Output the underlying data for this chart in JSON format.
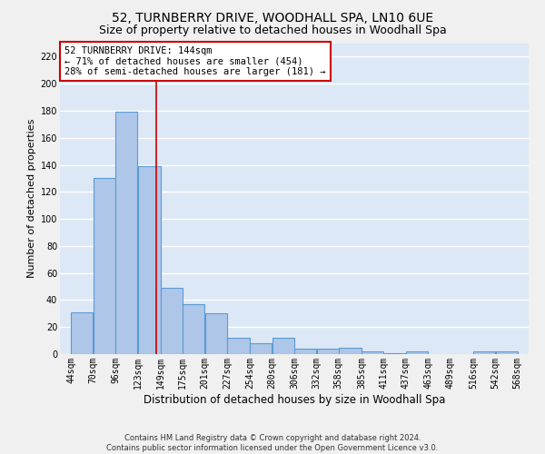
{
  "title": "52, TURNBERRY DRIVE, WOODHALL SPA, LN10 6UE",
  "subtitle": "Size of property relative to detached houses in Woodhall Spa",
  "xlabel": "Distribution of detached houses by size in Woodhall Spa",
  "ylabel": "Number of detached properties",
  "footer_line1": "Contains HM Land Registry data © Crown copyright and database right 2024.",
  "footer_line2": "Contains public sector information licensed under the Open Government Licence v3.0.",
  "bar_left_edges": [
    44,
    70,
    96,
    123,
    149,
    175,
    201,
    227,
    254,
    280,
    306,
    332,
    358,
    385,
    411,
    437,
    463,
    489,
    516,
    542
  ],
  "bar_widths": [
    26,
    26,
    26,
    26,
    26,
    26,
    26,
    27,
    26,
    26,
    26,
    26,
    27,
    26,
    26,
    26,
    26,
    27,
    26,
    26
  ],
  "bar_heights": [
    31,
    130,
    179,
    139,
    49,
    37,
    30,
    12,
    8,
    12,
    4,
    4,
    5,
    2,
    1,
    2,
    0,
    0,
    2,
    2
  ],
  "bar_color": "#aec6e8",
  "bar_edge_color": "#5b9bd5",
  "bar_edge_width": 0.8,
  "ylim": [
    0,
    230
  ],
  "yticks": [
    0,
    20,
    40,
    60,
    80,
    100,
    120,
    140,
    160,
    180,
    200,
    220
  ],
  "xtick_labels": [
    "44sqm",
    "70sqm",
    "96sqm",
    "123sqm",
    "149sqm",
    "175sqm",
    "201sqm",
    "227sqm",
    "254sqm",
    "280sqm",
    "306sqm",
    "332sqm",
    "358sqm",
    "385sqm",
    "411sqm",
    "437sqm",
    "463sqm",
    "489sqm",
    "516sqm",
    "542sqm",
    "568sqm"
  ],
  "xtick_positions": [
    44,
    70,
    96,
    123,
    149,
    175,
    201,
    227,
    254,
    280,
    306,
    332,
    358,
    385,
    411,
    437,
    463,
    489,
    516,
    542,
    568
  ],
  "property_size": 144,
  "red_line_color": "#cc0000",
  "annotation_text_line1": "52 TURNBERRY DRIVE: 144sqm",
  "annotation_text_line2": "← 71% of detached houses are smaller (454)",
  "annotation_text_line3": "28% of semi-detached houses are larger (181) →",
  "annotation_box_color": "#ffffff",
  "annotation_box_edge_color": "#cc0000",
  "background_color": "#dce8f5",
  "fig_background_color": "#f0f0f0",
  "grid_color": "#ffffff",
  "title_fontsize": 10,
  "subtitle_fontsize": 9,
  "xlabel_fontsize": 8.5,
  "ylabel_fontsize": 8,
  "tick_fontsize": 7,
  "annotation_fontsize": 7.5,
  "footer_fontsize": 6
}
